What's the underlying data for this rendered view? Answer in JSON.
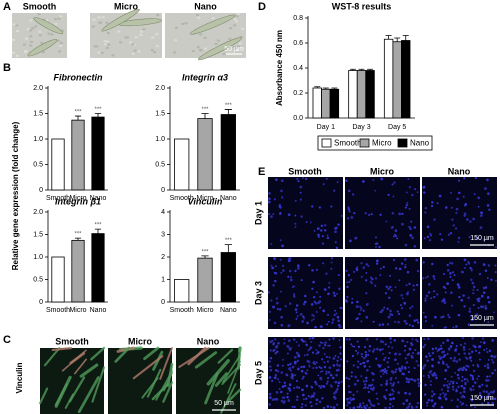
{
  "panel_labels": [
    "A",
    "B",
    "C",
    "D",
    "E"
  ],
  "panel_a": {
    "columns": [
      "Smooth",
      "Micro",
      "Nano"
    ],
    "scale_bar": "50 µm"
  },
  "panel_b": {
    "ylabel": "Relative gene expression (fold change)"
  },
  "panel_c": {
    "row_label": "Vinculin",
    "columns": [
      "Smooth",
      "Micro",
      "Nano"
    ],
    "scale_bar": "50 µm"
  },
  "panel_e": {
    "columns": [
      "Smooth",
      "Micro",
      "Nano"
    ],
    "rows": [
      "Day 1",
      "Day 3",
      "Day 5"
    ],
    "scale_bar": "150 µm"
  },
  "chart_data": [
    {
      "type": "bar",
      "title": "Fibronectin",
      "categories": [
        "Smooth",
        "Micro",
        "Nano"
      ],
      "values": [
        1,
        1.37,
        1.43
      ],
      "errors": [
        null,
        0.08,
        0.07
      ],
      "colors": [
        "#ffffff",
        "#a6a6a6",
        "#000000"
      ],
      "ylim": [
        0,
        2
      ],
      "yticks": [
        0,
        0.5,
        {
          "value": 1,
          "label": "1.0"
        },
        1.5,
        {
          "value": 2,
          "label": "2.0"
        }
      ],
      "annotations": [
        {
          "category": "Micro",
          "text": "***"
        },
        {
          "category": "Nano",
          "text": "***"
        }
      ]
    },
    {
      "type": "bar",
      "title": "Integrin α3",
      "categories": [
        "Smooth",
        "Micro",
        "Nano"
      ],
      "values": [
        1,
        1.4,
        1.48
      ],
      "errors": [
        null,
        0.1,
        0.1
      ],
      "colors": [
        "#ffffff",
        "#a6a6a6",
        "#000000"
      ],
      "ylim": [
        0,
        2
      ],
      "yticks": [
        0,
        0.5,
        {
          "value": 1,
          "label": "1.0"
        },
        1.5,
        {
          "value": 2,
          "label": "2.0"
        }
      ],
      "annotations": [
        {
          "category": "Micro",
          "text": "***"
        },
        {
          "category": "Nano",
          "text": "***"
        }
      ]
    },
    {
      "type": "bar",
      "title": "Integrin β1",
      "categories": [
        "Smooth",
        "Micro",
        "Nano"
      ],
      "values": [
        1,
        1.37,
        1.52
      ],
      "errors": [
        null,
        0.05,
        0.1
      ],
      "colors": [
        "#ffffff",
        "#a6a6a6",
        "#000000"
      ],
      "ylim": [
        0,
        2
      ],
      "yticks": [
        0,
        0.5,
        {
          "value": 1,
          "label": "1.0"
        },
        1.5,
        {
          "value": 2,
          "label": "2.0"
        }
      ],
      "annotations": [
        {
          "category": "Micro",
          "text": "***"
        },
        {
          "category": "Nano",
          "text": "***"
        }
      ]
    },
    {
      "type": "bar",
      "title": "Vinculin",
      "categories": [
        "Smooth",
        "Micro",
        "Nano"
      ],
      "values": [
        1,
        1.95,
        2.2
      ],
      "errors": [
        null,
        0.1,
        0.35
      ],
      "colors": [
        "#ffffff",
        "#a6a6a6",
        "#000000"
      ],
      "ylim": [
        0,
        4
      ],
      "yticks": [
        0,
        1,
        2,
        3,
        4
      ],
      "annotations": [
        {
          "category": "Micro",
          "text": "***"
        },
        {
          "category": "Nano",
          "text": "***"
        }
      ]
    },
    {
      "type": "grouped_bar",
      "title": "WST-8 results",
      "ylabel": "Absorbance 450 nm",
      "categories": [
        "Day 1",
        "Day 3",
        "Day 5"
      ],
      "series": [
        {
          "name": "Smooth",
          "color": "#ffffff",
          "values": [
            0.24,
            0.38,
            0.63
          ],
          "errors": [
            0.01,
            0.01,
            0.03
          ]
        },
        {
          "name": "Micro",
          "color": "#a6a6a6",
          "values": [
            0.23,
            0.38,
            0.61
          ],
          "errors": [
            0.01,
            0.01,
            0.03
          ]
        },
        {
          "name": "Nano",
          "color": "#000000",
          "values": [
            0.23,
            0.38,
            0.62
          ],
          "errors": [
            0.01,
            0.01,
            0.04
          ]
        }
      ],
      "ylim": [
        0,
        0.8
      ],
      "yticks": [
        {
          "value": 0,
          "label": "0.0"
        },
        0.2,
        0.4,
        0.6,
        0.8
      ],
      "legend": "bottom"
    }
  ]
}
